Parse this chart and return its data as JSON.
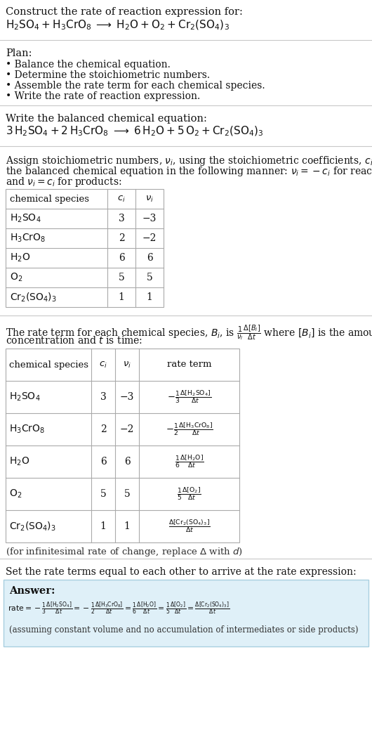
{
  "bg_color": "#ffffff",
  "text_color": "#000000",
  "section_line_color": "#cccccc",
  "answer_box_color": "#dff0f8",
  "answer_box_edge": "#a8cfe0",
  "title_line1": "Construct the rate of reaction expression for:",
  "title_line2": "$\\mathrm{H_2SO_4 + H_3CrO_8 \\;\\longrightarrow\\; H_2O + O_2 + Cr_2(SO_4)_3}$",
  "plan_title": "Plan:",
  "plan_items": [
    "• Balance the chemical equation.",
    "• Determine the stoichiometric numbers.",
    "• Assemble the rate term for each chemical species.",
    "• Write the rate of reaction expression."
  ],
  "balanced_title": "Write the balanced chemical equation:",
  "balanced_eq": "$\\mathrm{3\\,H_2SO_4 + 2\\,H_3CrO_8 \\;\\longrightarrow\\; 6\\,H_2O + 5\\,O_2 + Cr_2(SO_4)_3}$",
  "stoich_para": [
    "Assign stoichiometric numbers, $\\nu_i$, using the stoichiometric coefficients, $c_i$, from",
    "the balanced chemical equation in the following manner: $\\nu_i = -c_i$ for reactants",
    "and $\\nu_i = c_i$ for products:"
  ],
  "table1_headers": [
    "chemical species",
    "$c_i$",
    "$\\nu_i$"
  ],
  "table1_rows": [
    [
      "$\\mathrm{H_2SO_4}$",
      "3",
      "−3"
    ],
    [
      "$\\mathrm{H_3CrO_8}$",
      "2",
      "−2"
    ],
    [
      "$\\mathrm{H_2O}$",
      "6",
      "6"
    ],
    [
      "$\\mathrm{O_2}$",
      "5",
      "5"
    ],
    [
      "$\\mathrm{Cr_2(SO_4)_3}$",
      "1",
      "1"
    ]
  ],
  "rate_para": [
    "The rate term for each chemical species, $B_i$, is $\\frac{1}{\\nu_i}\\frac{\\Delta[B_i]}{\\Delta t}$ where $[B_i]$ is the amount",
    "concentration and $t$ is time:"
  ],
  "table2_headers": [
    "chemical species",
    "$c_i$",
    "$\\nu_i$",
    "rate term"
  ],
  "table2_rows": [
    [
      "$\\mathrm{H_2SO_4}$",
      "3",
      "−3",
      "$-\\frac{1}{3}\\frac{\\Delta[\\mathrm{H_2SO_4}]}{\\Delta t}$"
    ],
    [
      "$\\mathrm{H_3CrO_8}$",
      "2",
      "−2",
      "$-\\frac{1}{2}\\frac{\\Delta[\\mathrm{H_3CrO_8}]}{\\Delta t}$"
    ],
    [
      "$\\mathrm{H_2O}$",
      "6",
      "6",
      "$\\frac{1}{6}\\frac{\\Delta[\\mathrm{H_2O}]}{\\Delta t}$"
    ],
    [
      "$\\mathrm{O_2}$",
      "5",
      "5",
      "$\\frac{1}{5}\\frac{\\Delta[\\mathrm{O_2}]}{\\Delta t}$"
    ],
    [
      "$\\mathrm{Cr_2(SO_4)_3}$",
      "1",
      "1",
      "$\\frac{\\Delta[\\mathrm{Cr_2(SO_4)_3}]}{\\Delta t}$"
    ]
  ],
  "infinitesimal_note": "(for infinitesimal rate of change, replace $\\Delta$ with $d$)",
  "set_equal_text": "Set the rate terms equal to each other to arrive at the rate expression:",
  "answer_label": "Answer:",
  "answer_rate_eq": "$\\mathrm{rate} = -\\frac{1}{3}\\frac{\\Delta[\\mathrm{H_2SO_4}]}{\\Delta t} = -\\frac{1}{2}\\frac{\\Delta[\\mathrm{H_3CrO_8}]}{\\Delta t} = \\frac{1}{6}\\frac{\\Delta[\\mathrm{H_2O}]}{\\Delta t} = \\frac{1}{5}\\frac{\\Delta[\\mathrm{O_2}]}{\\Delta t} = \\frac{\\Delta[\\mathrm{Cr_2(SO_4)_3}]}{\\Delta t}$",
  "answer_note": "(assuming constant volume and no accumulation of intermediates or side products)"
}
